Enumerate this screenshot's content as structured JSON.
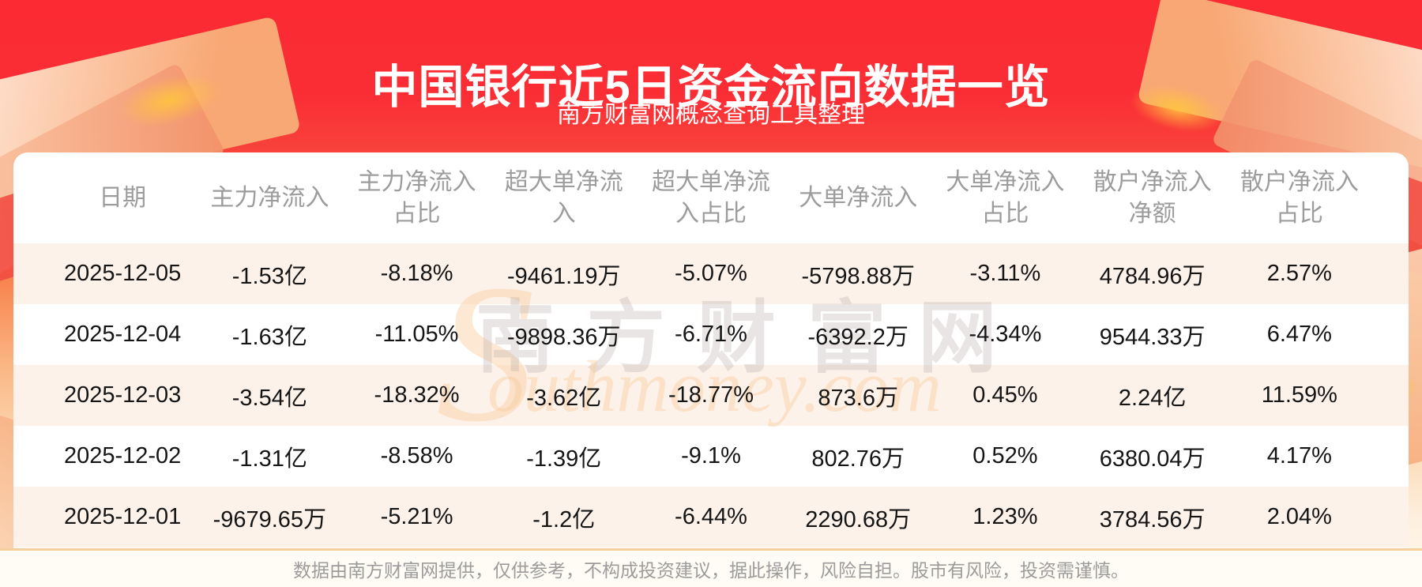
{
  "header": {
    "title": "中国银行近5日资金流向数据一览",
    "subtitle": "南方财富网概念查询工具整理"
  },
  "table": {
    "columns": [
      "日期",
      "主力净流入",
      "主力净流入\n占比",
      "超大单净流\n入",
      "超大单净流\n入占比",
      "大单净流入",
      "大单净流入\n占比",
      "散户净流入\n净额",
      "散户净流入\n占比"
    ],
    "rows": [
      [
        "2025-12-05",
        "-1.53亿",
        "-8.18%",
        "-9461.19万",
        "-5.07%",
        "-5798.88万",
        "-3.11%",
        "4784.96万",
        "2.57%"
      ],
      [
        "2025-12-04",
        "-1.63亿",
        "-11.05%",
        "-9898.36万",
        "-6.71%",
        "-6392.2万",
        "-4.34%",
        "9544.33万",
        "6.47%"
      ],
      [
        "2025-12-03",
        "-3.54亿",
        "-18.32%",
        "-3.62亿",
        "-18.77%",
        "873.6万",
        "0.45%",
        "2.24亿",
        "11.59%"
      ],
      [
        "2025-12-02",
        "-1.31亿",
        "-8.58%",
        "-1.39亿",
        "-9.1%",
        "802.76万",
        "0.52%",
        "6380.04万",
        "4.17%"
      ],
      [
        "2025-12-01",
        "-9679.65万",
        "-5.21%",
        "-1.2亿",
        "-6.44%",
        "2290.68万",
        "1.23%",
        "3784.56万",
        "2.04%"
      ]
    ]
  },
  "chart_data": {
    "type": "table",
    "title": "中国银行近5日资金流向数据一览",
    "subtitle": "南方财富网概念查询工具整理",
    "columns": [
      "日期",
      "主力净流入",
      "主力净流入占比",
      "超大单净流入",
      "超大单净流入占比",
      "大单净流入",
      "大单净流入占比",
      "散户净流入净额",
      "散户净流入占比"
    ],
    "rows": [
      [
        "2025-12-05",
        "-1.53亿",
        "-8.18%",
        "-9461.19万",
        "-5.07%",
        "-5798.88万",
        "-3.11%",
        "4784.96万",
        "2.57%"
      ],
      [
        "2025-12-04",
        "-1.63亿",
        "-11.05%",
        "-9898.36万",
        "-6.71%",
        "-6392.2万",
        "-4.34%",
        "9544.33万",
        "6.47%"
      ],
      [
        "2025-12-03",
        "-3.54亿",
        "-18.32%",
        "-3.62亿",
        "-18.77%",
        "873.6万",
        "0.45%",
        "2.24亿",
        "11.59%"
      ],
      [
        "2025-12-02",
        "-1.31亿",
        "-8.58%",
        "-1.39亿",
        "-9.1%",
        "802.76万",
        "0.52%",
        "6380.04万",
        "4.17%"
      ],
      [
        "2025-12-01",
        "-9679.65万",
        "-5.21%",
        "-1.2亿",
        "-6.44%",
        "2290.68万",
        "1.23%",
        "3784.56万",
        "2.04%"
      ]
    ]
  },
  "watermark": {
    "initial": "S",
    "cn": "南方财富网",
    "en": "outhmoney.com"
  },
  "footer": {
    "disclaimer": "数据由南方财富网提供，仅供参考，不构成投资建议，据此操作，风险自担。股市有风险，投资需谨慎。"
  },
  "colors": {
    "accent_red": "#fa2d35",
    "banner_text": "#ffffff",
    "row_stripe": "#fdf2ea",
    "divider": "#f7cf9e",
    "header_text": "#9c9c9c",
    "cell_text": "#151515",
    "footer_bg": "#fffbf5"
  }
}
